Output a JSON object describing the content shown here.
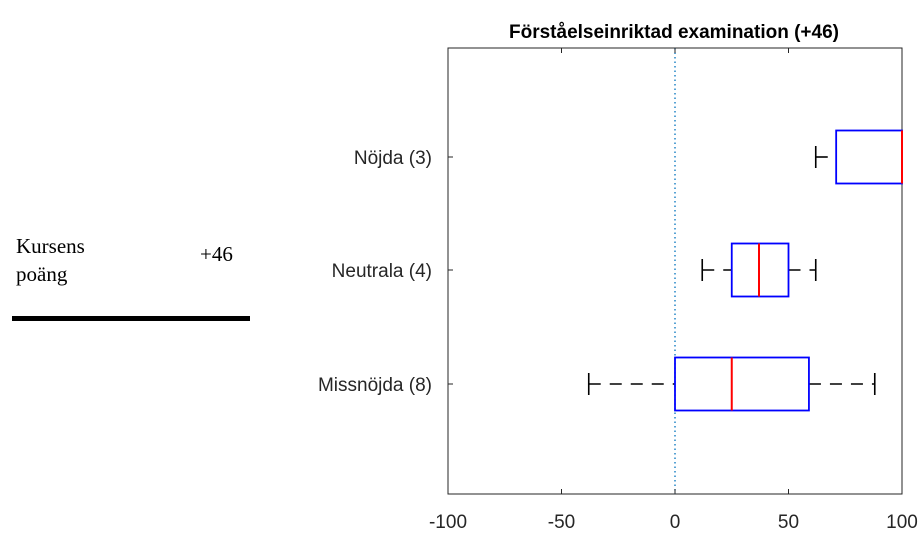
{
  "score_panel": {
    "label_line1": "Kursens",
    "label_line2": "poäng",
    "value": "+46"
  },
  "chart_data": {
    "type": "boxplot",
    "title": "Förståelseinriktad examination (+46)",
    "xlabel": "",
    "ylabel": "",
    "xlim": [
      -100,
      100
    ],
    "xticks": [
      "-100",
      "-50",
      "0",
      "50",
      "100"
    ],
    "xtick_values": [
      -100,
      -50,
      0,
      50,
      100
    ],
    "reference_line": {
      "x": 0,
      "style": "dotted",
      "color": "#0072BD"
    },
    "colors": {
      "box": "#0000FF",
      "median": "#FF0000",
      "whisker": "#000000"
    },
    "grid": false,
    "categories": [
      "Nöjda (3)",
      "Neutrala (4)",
      "Missnöjda (8)"
    ],
    "series": [
      {
        "category": "Nöjda (3)",
        "whisker_low": 62,
        "q1": 71,
        "median": 100,
        "q3": 100,
        "whisker_high": 100
      },
      {
        "category": "Neutrala (4)",
        "whisker_low": 12,
        "q1": 25,
        "median": 37,
        "q3": 50,
        "whisker_high": 62
      },
      {
        "category": "Missnöjda (8)",
        "whisker_low": -38,
        "q1": 0,
        "median": 25,
        "q3": 59,
        "whisker_high": 88
      }
    ]
  }
}
